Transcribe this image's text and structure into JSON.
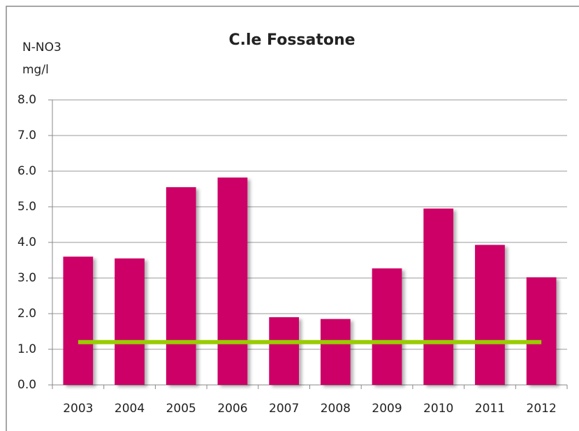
{
  "chart_data": {
    "type": "bar",
    "title": "C.le Fossatone",
    "y_label_lines": [
      "N-NO3",
      "mg/l"
    ],
    "categories": [
      "2003",
      "2004",
      "2005",
      "2006",
      "2007",
      "2008",
      "2009",
      "2010",
      "2011",
      "2012"
    ],
    "values": [
      3.6,
      3.55,
      5.55,
      5.82,
      1.9,
      1.85,
      3.27,
      4.95,
      3.93,
      3.02
    ],
    "color": "#cc0066",
    "reference_value": 1.2,
    "reference_color": "#99cc00",
    "ylim": [
      0,
      8
    ],
    "yticks": [
      {
        "value": 0,
        "label": "0.0"
      },
      {
        "value": 1,
        "label": "1.0"
      },
      {
        "value": 2,
        "label": "2.0"
      },
      {
        "value": 3,
        "label": "3.0"
      },
      {
        "value": 4,
        "label": "4.0"
      },
      {
        "value": 5,
        "label": "5.0"
      },
      {
        "value": 6,
        "label": "6.0"
      },
      {
        "value": 7,
        "label": "7.0"
      },
      {
        "value": 8,
        "label": "8.0"
      }
    ],
    "grid": true
  }
}
